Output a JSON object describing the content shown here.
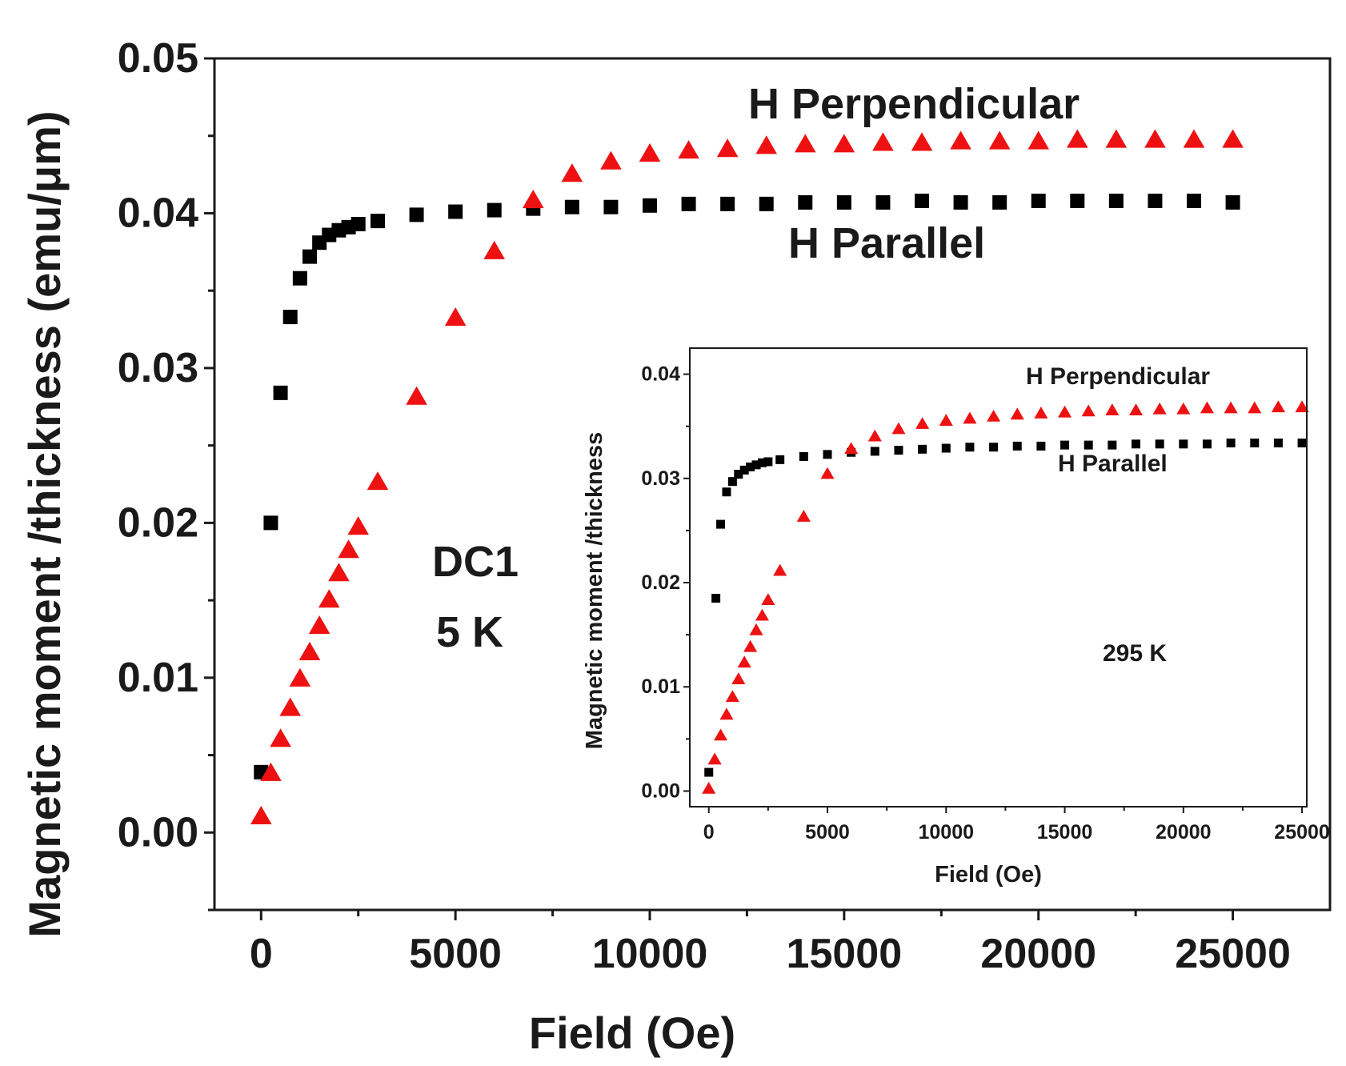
{
  "chart_data": [
    {
      "id": "main",
      "type": "scatter",
      "title": "",
      "xlabel": "Field (Oe)",
      "ylabel": "Magnetic moment /thickness (emu/μm)",
      "xlim": [
        -1200,
        27500
      ],
      "ylim": [
        -0.005,
        0.05
      ],
      "xticks": [
        0,
        5000,
        10000,
        15000,
        20000,
        25000
      ],
      "xtick_labels": [
        "0",
        "5000",
        "10000",
        "15000",
        "20000",
        "25000"
      ],
      "yticks": [
        0.0,
        0.01,
        0.02,
        0.03,
        0.04,
        0.05
      ],
      "ytick_labels": [
        "0.00",
        "0.01",
        "0.02",
        "0.03",
        "0.04",
        "0.05"
      ],
      "grid": false,
      "annotations": [
        {
          "text": "H Perpendicular"
        },
        {
          "text": "H Parallel"
        },
        {
          "text": "DC1"
        },
        {
          "text": "5 K"
        }
      ],
      "series": [
        {
          "name": "H Parallel",
          "marker": "square",
          "color": "#000000",
          "x": [
            0,
            250,
            500,
            750,
            1000,
            1250,
            1500,
            1750,
            2000,
            2250,
            2500,
            3000,
            4000,
            5000,
            6000,
            7000,
            8000,
            9000,
            10000,
            11000,
            12000,
            13000,
            14000,
            15000,
            16000,
            17000,
            18000,
            19000,
            20000,
            21000,
            22000,
            23000,
            24000,
            25000
          ],
          "y": [
            0.0039,
            0.02,
            0.0284,
            0.0333,
            0.0358,
            0.0372,
            0.0381,
            0.0386,
            0.0389,
            0.0391,
            0.0393,
            0.0395,
            0.0399,
            0.0401,
            0.0402,
            0.0403,
            0.0404,
            0.0404,
            0.0405,
            0.0406,
            0.0406,
            0.0406,
            0.0407,
            0.0407,
            0.0407,
            0.0408,
            0.0407,
            0.0407,
            0.0408,
            0.0408,
            0.0408,
            0.0408,
            0.0408,
            0.0407
          ]
        },
        {
          "name": "H Perpendicular",
          "marker": "triangle",
          "color": "#ee1111",
          "x": [
            0,
            250,
            500,
            750,
            1000,
            1250,
            1500,
            1750,
            2000,
            2250,
            2500,
            3000,
            4000,
            5000,
            6000,
            7000,
            8000,
            9000,
            10000,
            11000,
            12000,
            13000,
            14000,
            15000,
            16000,
            17000,
            18000,
            19000,
            20000,
            21000,
            22000,
            23000,
            24000,
            25000
          ],
          "y": [
            0.001,
            0.0038,
            0.006,
            0.008,
            0.0099,
            0.0116,
            0.0133,
            0.015,
            0.0167,
            0.0182,
            0.0197,
            0.0226,
            0.0281,
            0.0332,
            0.0375,
            0.0408,
            0.0425,
            0.0433,
            0.0438,
            0.044,
            0.0441,
            0.0443,
            0.0444,
            0.0444,
            0.0445,
            0.0445,
            0.0446,
            0.0446,
            0.0446,
            0.0447,
            0.0447,
            0.0447,
            0.0447,
            0.0447
          ]
        }
      ]
    },
    {
      "id": "inset",
      "type": "scatter",
      "title": "",
      "xlabel": "Field (Oe)",
      "ylabel": "Magnetic moment /thickness",
      "xlim": [
        -800,
        25200
      ],
      "ylim": [
        -0.0015,
        0.0425
      ],
      "xticks": [
        0,
        5000,
        10000,
        15000,
        20000,
        25000
      ],
      "xtick_labels": [
        "0",
        "5000",
        "10000",
        "15000",
        "20000",
        "25000"
      ],
      "yticks": [
        0.0,
        0.01,
        0.02,
        0.03,
        0.04
      ],
      "ytick_labels": [
        "0.00",
        "0.01",
        "0.02",
        "0.03",
        "0.04"
      ],
      "grid": false,
      "annotations": [
        {
          "text": "H Perpendicular"
        },
        {
          "text": "H Parallel"
        },
        {
          "text": "295 K"
        }
      ],
      "series": [
        {
          "name": "H Parallel",
          "marker": "square",
          "color": "#000000",
          "x": [
            0,
            300,
            500,
            750,
            1000,
            1250,
            1500,
            1750,
            2000,
            2250,
            2500,
            3000,
            4000,
            5000,
            6000,
            7000,
            8000,
            9000,
            10000,
            11000,
            12000,
            13000,
            14000,
            15000,
            16000,
            17000,
            18000,
            19000,
            20000,
            21000,
            22000,
            23000,
            24000,
            25000
          ],
          "y": [
            0.0018,
            0.0185,
            0.0256,
            0.0287,
            0.0297,
            0.0304,
            0.0308,
            0.0311,
            0.0313,
            0.0315,
            0.0316,
            0.0318,
            0.0321,
            0.0323,
            0.0325,
            0.0326,
            0.0327,
            0.0328,
            0.0329,
            0.033,
            0.033,
            0.0331,
            0.0331,
            0.0332,
            0.0332,
            0.0332,
            0.0333,
            0.0333,
            0.0333,
            0.0333,
            0.0334,
            0.0334,
            0.0334,
            0.0334
          ]
        },
        {
          "name": "H Perpendicular",
          "marker": "triangle",
          "color": "#ee1111",
          "x": [
            0,
            250,
            500,
            750,
            1000,
            1250,
            1500,
            1750,
            2000,
            2250,
            2500,
            3000,
            4000,
            5000,
            6000,
            7000,
            8000,
            9000,
            10000,
            11000,
            12000,
            13000,
            14000,
            15000,
            16000,
            17000,
            18000,
            19000,
            20000,
            21000,
            22000,
            23000,
            24000,
            25000
          ],
          "y": [
            0.0002,
            0.003,
            0.0053,
            0.0073,
            0.009,
            0.0107,
            0.0123,
            0.0138,
            0.0154,
            0.0168,
            0.0183,
            0.0211,
            0.0263,
            0.0304,
            0.0328,
            0.034,
            0.0347,
            0.0352,
            0.0355,
            0.0357,
            0.0359,
            0.0361,
            0.0362,
            0.0363,
            0.0364,
            0.0365,
            0.0365,
            0.0366,
            0.0366,
            0.0367,
            0.0367,
            0.0367,
            0.0368,
            0.0368
          ]
        }
      ]
    }
  ]
}
